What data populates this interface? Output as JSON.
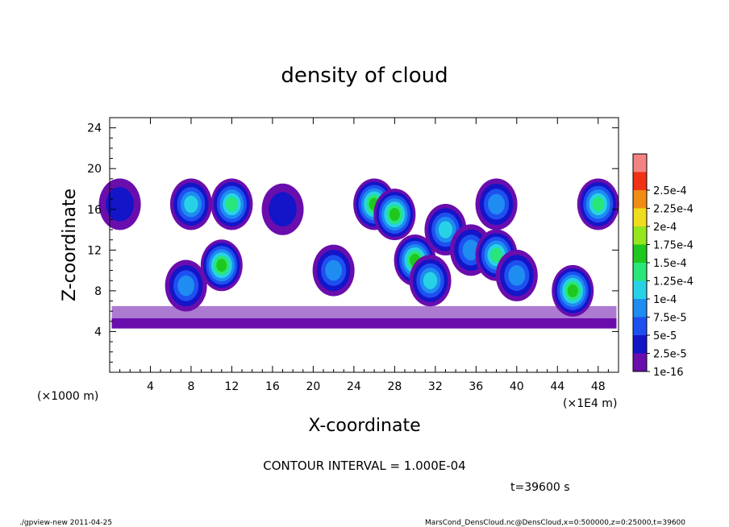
{
  "chart_data": {
    "type": "heatmap",
    "title": "density of cloud",
    "xlabel": "X-coordinate",
    "ylabel": "Z-coordinate",
    "x_unit_left": "(×1000 m)",
    "x_unit_right": "(×1E4 m)",
    "xlim": [
      0,
      50
    ],
    "ylim": [
      0,
      25
    ],
    "xticks": [
      "4",
      "8",
      "12",
      "16",
      "20",
      "24",
      "28",
      "32",
      "36",
      "40",
      "44",
      "48"
    ],
    "yticks": [
      "4",
      "8",
      "12",
      "16",
      "20",
      "24"
    ],
    "contour_interval": "CONTOUR INTERVAL = 1.000E-04",
    "time": "t=39600 s",
    "colorbar": {
      "labels": [
        "1e-16",
        "2.5e-5",
        "5e-5",
        "7.5e-5",
        "1e-4",
        "1.25e-4",
        "1.5e-4",
        "1.75e-4",
        "2e-4",
        "2.25e-4",
        "2.5e-4"
      ],
      "colors": [
        "#6a0dad",
        "#1414c8",
        "#1e50f0",
        "#1e8cf0",
        "#28d2e6",
        "#28e678",
        "#1ec81e",
        "#96e61e",
        "#f0dc1e",
        "#f08c14",
        "#f03214",
        "#f58282"
      ]
    },
    "cloud_cells": [
      {
        "x": 1,
        "z": 16.5,
        "level": 1
      },
      {
        "x": 7.5,
        "z": 8.5,
        "level": 3
      },
      {
        "x": 8,
        "z": 16.5,
        "level": 4
      },
      {
        "x": 11,
        "z": 10.5,
        "level": 6
      },
      {
        "x": 12,
        "z": 16.5,
        "level": 5
      },
      {
        "x": 17,
        "z": 16,
        "level": 1
      },
      {
        "x": 22,
        "z": 10,
        "level": 3
      },
      {
        "x": 26,
        "z": 16.5,
        "level": 6
      },
      {
        "x": 28,
        "z": 15.5,
        "level": 6
      },
      {
        "x": 30,
        "z": 11,
        "level": 6
      },
      {
        "x": 31.5,
        "z": 9,
        "level": 4
      },
      {
        "x": 33,
        "z": 14,
        "level": 4
      },
      {
        "x": 35.5,
        "z": 12,
        "level": 3
      },
      {
        "x": 38,
        "z": 11.5,
        "level": 5
      },
      {
        "x": 38,
        "z": 16.5,
        "level": 3
      },
      {
        "x": 40,
        "z": 9.5,
        "level": 3
      },
      {
        "x": 45.5,
        "z": 8,
        "level": 6
      },
      {
        "x": 48,
        "z": 16.5,
        "level": 5
      }
    ]
  },
  "footer": {
    "left": "./gpview-new   2011-04-25",
    "right": "MarsCond_DensCloud.nc@DensCloud,x=0:500000,z=0:25000,t=39600"
  }
}
